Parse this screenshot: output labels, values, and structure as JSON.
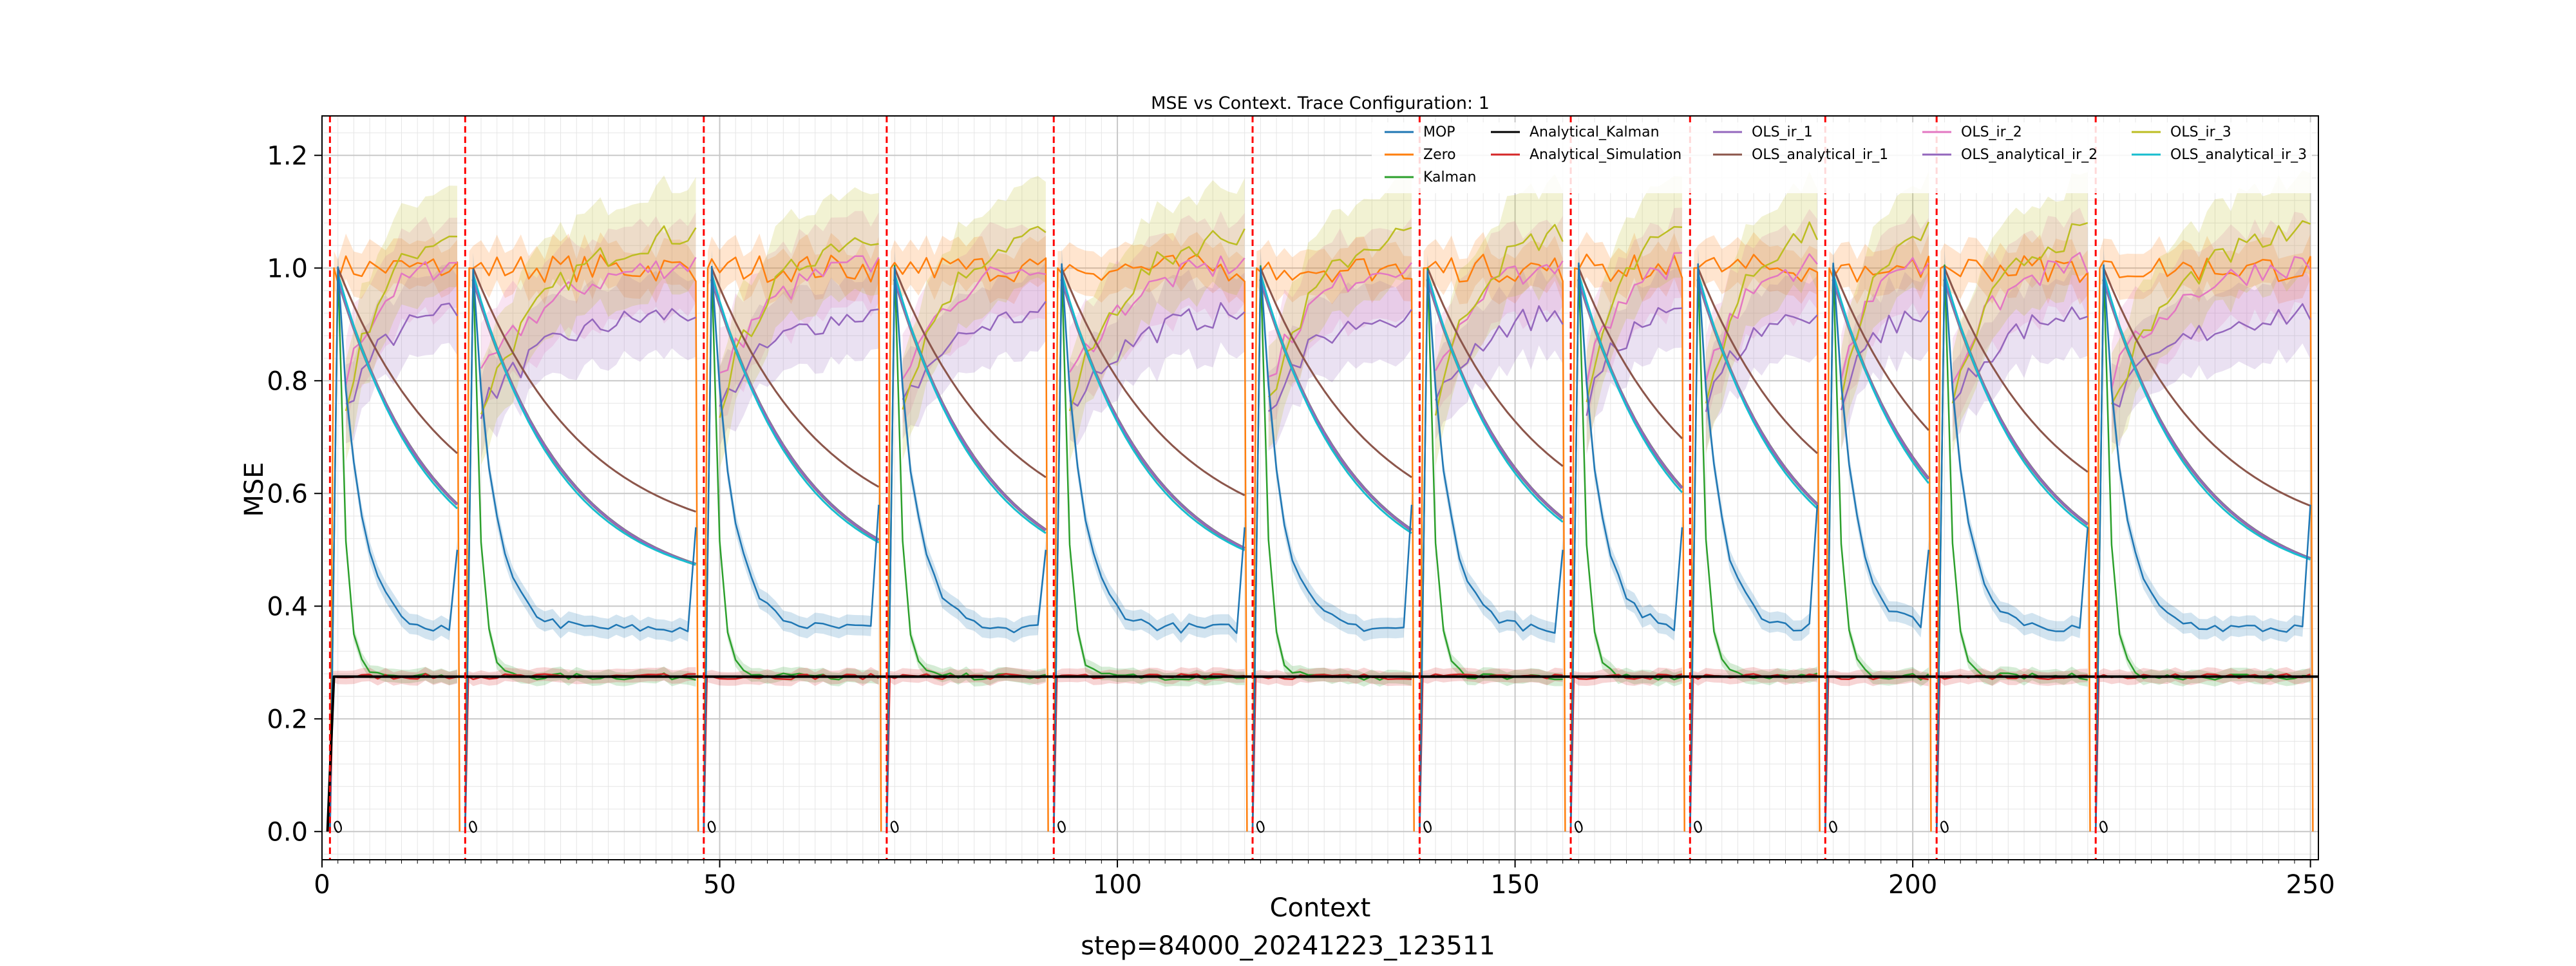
{
  "figure": {
    "footer": "step=84000_20241223_123511"
  },
  "chart_data": {
    "type": "line",
    "title": "MSE vs Context. Trace Configuration: 1",
    "xlabel": "Context",
    "ylabel": "MSE",
    "xlim": [
      0,
      251
    ],
    "ylim": [
      -0.05,
      1.27
    ],
    "x_ticks": [
      0,
      50,
      100,
      150,
      200,
      250
    ],
    "y_ticks": [
      0.0,
      0.2,
      0.4,
      0.6,
      0.8,
      1.0,
      1.2
    ],
    "grid": true,
    "legend_position": "top-right",
    "segment_starts": [
      1,
      18,
      48,
      71,
      92,
      117,
      138,
      157,
      172,
      189,
      203,
      223
    ],
    "segment_ends": [
      17,
      47,
      70,
      91,
      116,
      137,
      156,
      171,
      188,
      202,
      222,
      250
    ],
    "reset_marker_label": "0",
    "series": [
      {
        "name": "MOP",
        "color": "#1f77b4",
        "start": 1.0,
        "plateau": 0.36,
        "decay": 2.5,
        "end_spike": 0.5
      },
      {
        "name": "Zero",
        "color": "#ff7f0e",
        "level": 1.0
      },
      {
        "name": "Kalman",
        "color": "#2ca02c",
        "start": 1.0,
        "plateau": 0.275,
        "decay": 0.9
      },
      {
        "name": "Analytical_Kalman",
        "color": "#000000",
        "level": 0.275
      },
      {
        "name": "Analytical_Simulation",
        "color": "#d62728",
        "level": 0.275
      },
      {
        "name": "OLS_ir_1",
        "color": "#9467bd",
        "start": 0.75,
        "plateau": 0.93
      },
      {
        "name": "OLS_analytical_ir_1",
        "color": "#8c564b",
        "start": 1.0,
        "end_level": 0.5,
        "decay": 14
      },
      {
        "name": "OLS_ir_2",
        "color": "#e377c2",
        "start": 0.8,
        "plateau": 1.02
      },
      {
        "name": "OLS_analytical_ir_2",
        "color": "#9467bd",
        "start": 0.98,
        "end_level": 0.42,
        "decay": 12
      },
      {
        "name": "OLS_ir_3",
        "color": "#bcbd22",
        "start": 0.75,
        "plateau": 1.08
      },
      {
        "name": "OLS_analytical_ir_3",
        "color": "#17becf",
        "start": 0.99,
        "end_level": 0.43,
        "decay": 11
      }
    ]
  }
}
